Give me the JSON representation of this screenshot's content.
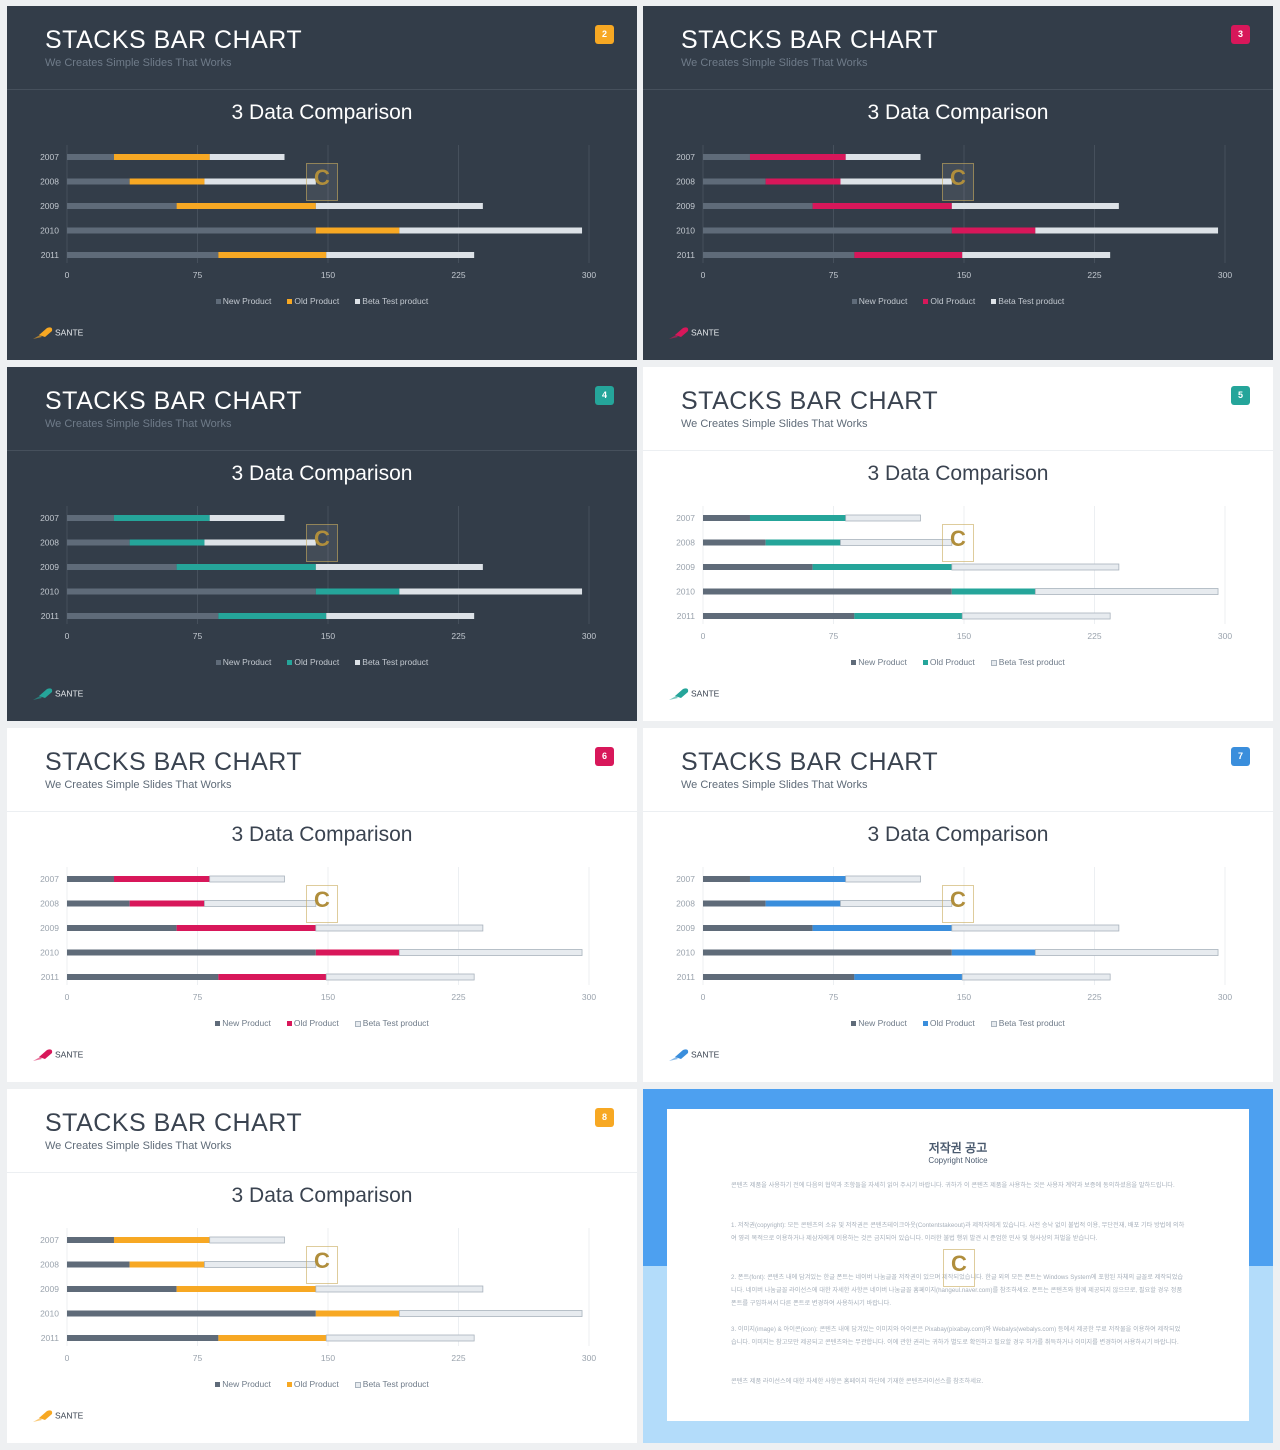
{
  "slides": [
    {
      "theme": "dark",
      "number": "2",
      "accent": "#f7a823",
      "legend_style": "dark"
    },
    {
      "theme": "dark",
      "number": "3",
      "accent": "#d8175a",
      "legend_style": "dark"
    },
    {
      "theme": "dark",
      "number": "4",
      "accent": "#25a59a",
      "legend_style": "dark"
    },
    {
      "theme": "light",
      "number": "5",
      "accent": "#25a59a",
      "legend_style": "light"
    },
    {
      "theme": "light",
      "number": "6",
      "accent": "#d8175a",
      "legend_style": "light"
    },
    {
      "theme": "light",
      "number": "7",
      "accent": "#3a8edc",
      "legend_style": "light"
    },
    {
      "theme": "light",
      "number": "8",
      "accent": "#f7a823",
      "legend_style": "light"
    }
  ],
  "slide_text": {
    "title": "STACKS BAR CHART",
    "subtitle": "We Creates Simple Slides That Works",
    "brand": "SANTE",
    "watermark_letter": "C"
  },
  "colors": {
    "new_dark": "#5f6b79",
    "new_light": "#5f6b79",
    "beta_dark": "#dde2e7",
    "beta_light": "#e7ebef",
    "beta_light_border": "#a9b3bd",
    "grid_dark": "#46505c",
    "grid_light": "#eceff2",
    "axis_text_dark": "#c2c8cf",
    "axis_text_light": "#9aa3ad"
  },
  "chart_data": {
    "type": "bar",
    "orientation": "horizontal",
    "stacked": true,
    "title": "3 Data Comparison",
    "categories": [
      "2007",
      "2008",
      "2009",
      "2010",
      "2011"
    ],
    "series": [
      {
        "name": "New Product",
        "values": [
          27,
          36,
          63,
          143,
          87
        ]
      },
      {
        "name": "Old Product",
        "values": [
          55,
          43,
          80,
          48,
          62
        ]
      },
      {
        "name": "Beta Test product",
        "values": [
          43,
          64,
          96,
          105,
          85
        ]
      }
    ],
    "xlim": [
      0,
      300
    ],
    "xticks": [
      "0",
      "75",
      "150",
      "225",
      "300"
    ],
    "legend": "bottom",
    "grid": true
  },
  "copyright": {
    "title": "저작권 공고",
    "subtitle": "Copyright Notice",
    "p1": "콘텐츠 제품을 사용하기 전에 다음의 협약과 조항들을 자세히 읽어 주시기 바랍니다. 귀하가 이 콘텐츠 제품을 사용하는 것은 사용자 계약과 보증에 동의하셨음을 말하드립니다.",
    "p2": "1. 저작권(copyright): 모든 콘텐츠의 소유 및 저작권은 콘텐츠테이크아웃(Contentstakeout)과 제작자에게 있습니다. 사전 승낙 없이 불법적 이용, 무단전재, 배포 기타 방법에 의하여 영리 목적으로 이용하거나 제삼자에게 이용하는 것은 금지되어 있습니다. 이러한 불법 행위 발견 시 준엄한 민사 및 형사상의 처벌을 받습니다.",
    "p3": "2. 폰트(font): 콘텐츠 내에 담겨있는 한글 폰트는 네이버 나눔글꼴 저작권이 있으며 제작되었습니다. 한글 외의 모든 폰트는 Windows System에 포함된 자체의 글꼴로 제작되었습니다. 네이버 나눔글꼴 라이선스에 대한 자세한 사항은 네이버 나눔글꼴 홈페이지(hangeul.naver.com)를 참조하세요. 폰트는 콘텐츠와 함께 제공되지 않으므로, 필요할 경우 정품 폰트를 구입하셔서 다른 폰트로 변경하여 사용하시기 바랍니다.",
    "p4": "3. 이미지(image) & 아이콘(icon): 콘텐츠 내에 담겨있는 이미지와 아이콘은 Pixabay(pixabay.com)와 Webalys(webalys.com) 등에서 제공한 무료 저작물을 이용하여 제작되었습니다. 이미지는 참고모만 제공되고 콘텐츠와는 무관합니다. 이에 관한 권리는 귀하가 별도로 확인하고 필요할 경우 허가를 취득하거나 이미지를 변경하여 사용하시기 바랍니다.",
    "p5": "콘텐츠 제품 라이선스에 대한 자세한 사항은 홈페이지 하단에 기재한 콘텐츠라이선스를 참조하세요."
  }
}
